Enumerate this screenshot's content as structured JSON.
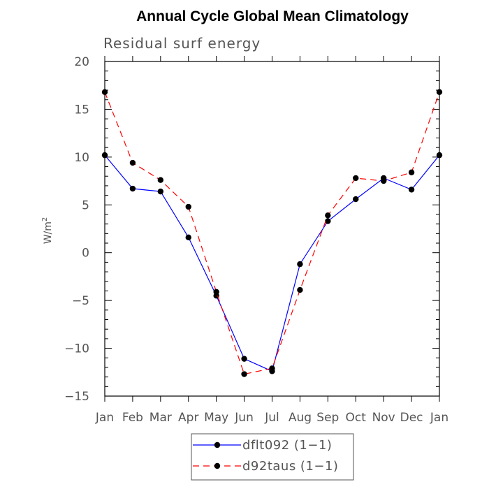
{
  "chart_data": {
    "type": "line",
    "title": "Annual Cycle Global Mean Climatology",
    "subtitle": "Residual surf energy",
    "ylabel": "W/m",
    "ylabel_superscript": "2",
    "xlabel": "",
    "categories": [
      "Jan",
      "Feb",
      "Mar",
      "Apr",
      "May",
      "Jun",
      "Jul",
      "Aug",
      "Sep",
      "Oct",
      "Nov",
      "Dec",
      "Jan"
    ],
    "ylim": [
      -15,
      20
    ],
    "yticks": [
      -15,
      -10,
      -5,
      0,
      5,
      10,
      15,
      20
    ],
    "ytick_labels": [
      "−15",
      "−10",
      "−5",
      "0",
      "5",
      "10",
      "15",
      "20"
    ],
    "series": [
      {
        "name": "dflt092 (1−1)",
        "color": "#0000ff",
        "dash": "solid",
        "values": [
          10.2,
          6.7,
          6.4,
          1.6,
          -4.5,
          -11.1,
          -12.4,
          -1.2,
          3.3,
          5.6,
          7.8,
          6.6,
          10.2
        ]
      },
      {
        "name": "d92taus (1−1)",
        "color": "#ff0000",
        "dash": "dashed",
        "values": [
          16.8,
          9.4,
          7.6,
          4.8,
          -4.1,
          -12.7,
          -12.1,
          -3.9,
          3.9,
          7.8,
          7.5,
          8.4,
          16.8
        ]
      }
    ],
    "legend_position": "bottom-center",
    "grid": false
  }
}
